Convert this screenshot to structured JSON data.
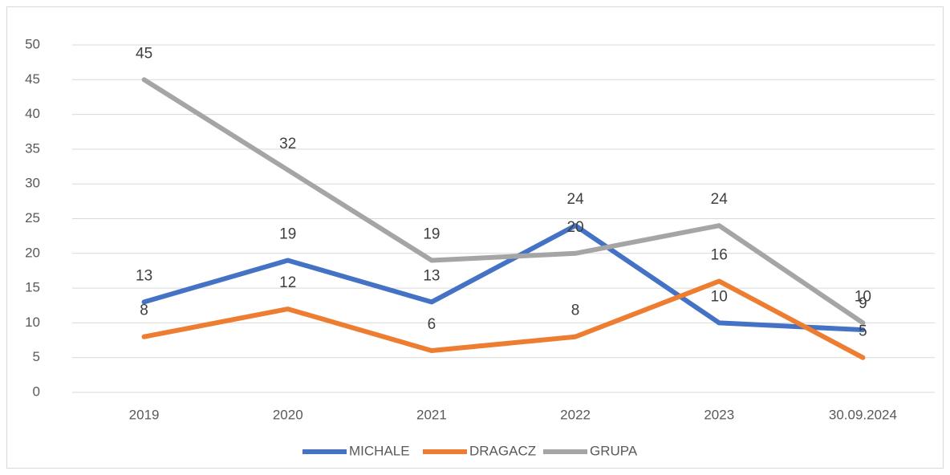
{
  "chart_data": {
    "type": "line",
    "categories": [
      "2019",
      "2020",
      "2021",
      "2022",
      "2023",
      "30.09.2024"
    ],
    "series": [
      {
        "name": "MICHALE",
        "color": "#4472c4",
        "values": [
          13,
          19,
          13,
          24,
          10,
          9
        ]
      },
      {
        "name": "DRAGACZ",
        "color": "#ed7d31",
        "values": [
          8,
          12,
          6,
          8,
          16,
          5
        ]
      },
      {
        "name": "GRUPA",
        "color": "#a5a5a5",
        "values": [
          45,
          32,
          19,
          20,
          24,
          10
        ]
      }
    ],
    "ylim": [
      0,
      50
    ],
    "yticks": [
      0,
      5,
      10,
      15,
      20,
      25,
      30,
      35,
      40,
      45,
      50
    ],
    "grid": true,
    "legend": "bottom"
  }
}
